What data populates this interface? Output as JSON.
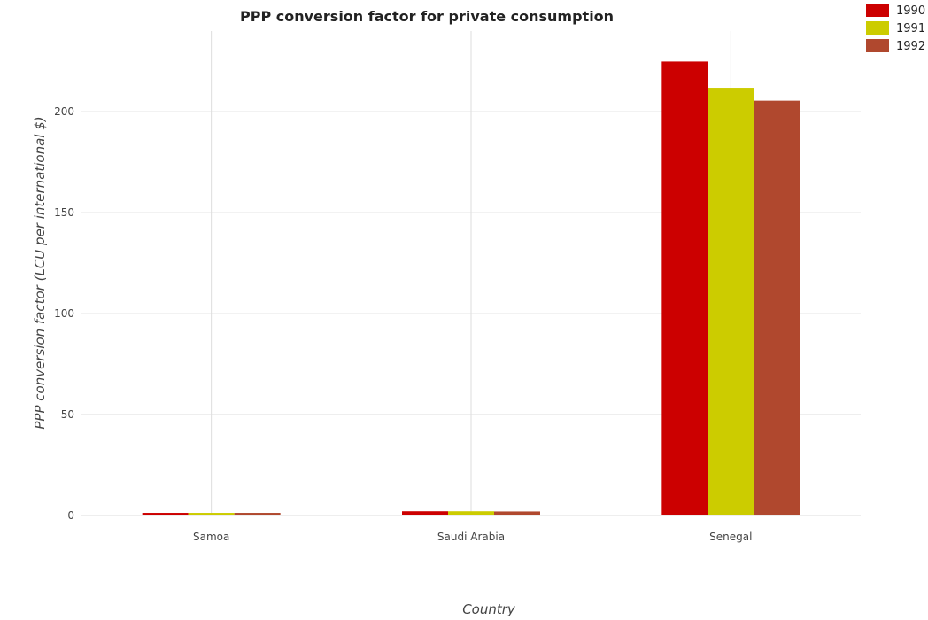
{
  "chart_data": {
    "type": "bar",
    "title": "PPP conversion factor for private consumption",
    "xlabel": "Country",
    "ylabel": "PPP conversion factor (LCU per international $)",
    "categories": [
      "Samoa",
      "Saudi Arabia",
      "Senegal"
    ],
    "series": [
      {
        "name": "1990",
        "color": "#cc0000",
        "values": [
          1.3,
          2.1,
          224.9
        ]
      },
      {
        "name": "1991",
        "color": "#cccc00",
        "values": [
          1.3,
          2.1,
          211.9
        ]
      },
      {
        "name": "1992",
        "color": "#b0482e",
        "values": [
          1.3,
          2.0,
          205.5
        ]
      }
    ],
    "ylim": [
      0,
      240
    ],
    "yticks": [
      0,
      50,
      100,
      150,
      200
    ],
    "grid": true,
    "legend": "top-right"
  }
}
